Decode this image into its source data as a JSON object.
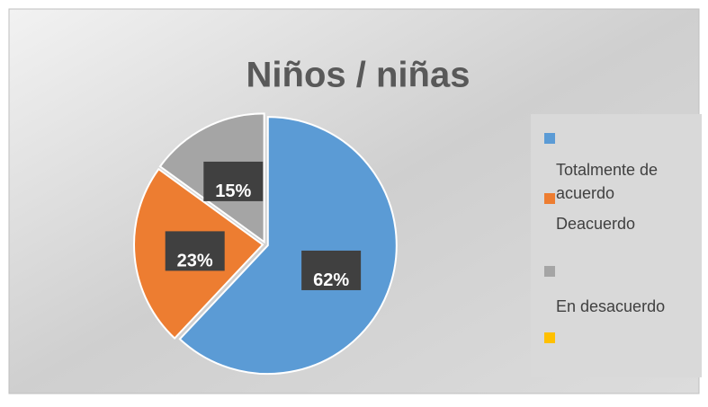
{
  "chart_data": {
    "type": "pie",
    "title": "Niños / niñas",
    "categories": [
      "Totalmente de acuerdo",
      "Deacuerdo",
      "En desacuerdo"
    ],
    "values": [
      62,
      23,
      15
    ],
    "value_labels": [
      "62%",
      "23%",
      "15%"
    ],
    "colors": [
      "#5b9bd5",
      "#ed7d31",
      "#a5a5a5",
      "#ffc000"
    ]
  }
}
